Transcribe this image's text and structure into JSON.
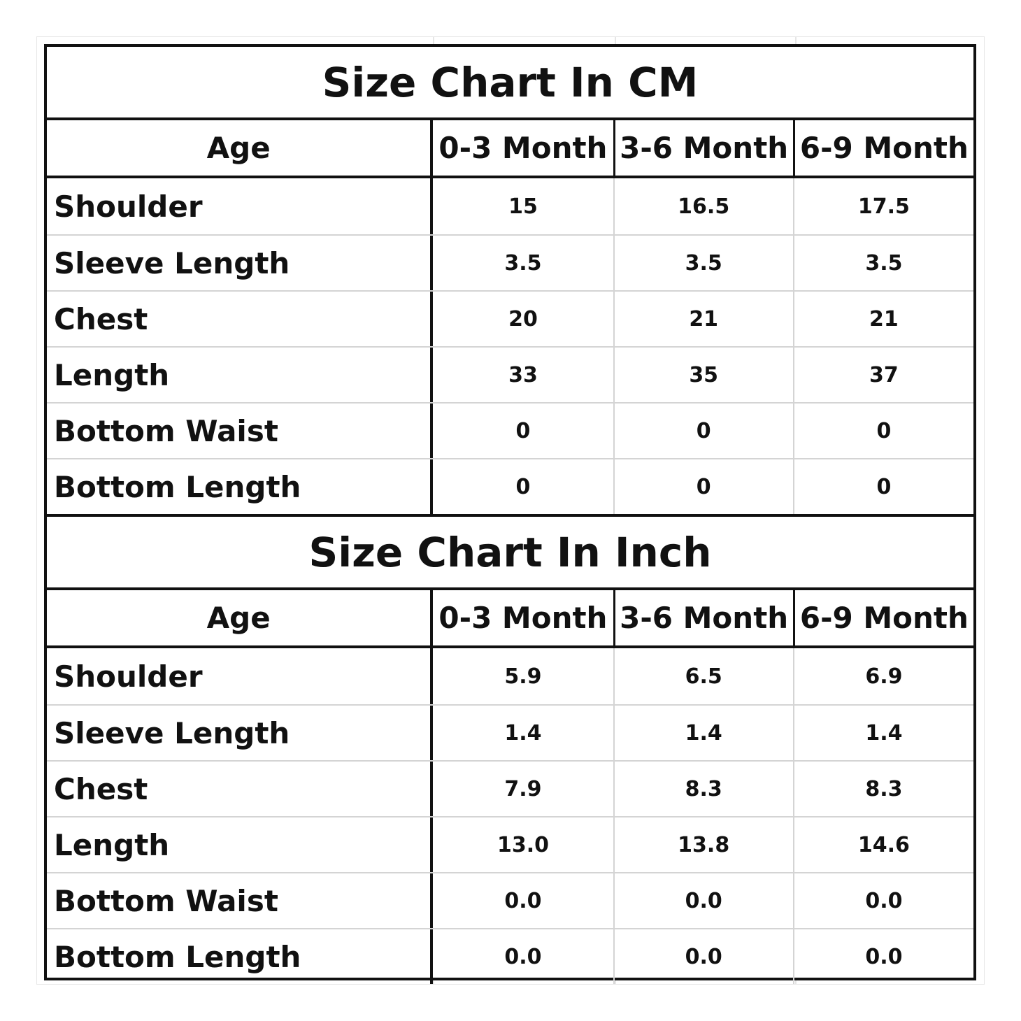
{
  "cm_chart": {
    "title": "Size Chart In CM",
    "header": {
      "label": "Age",
      "columns": [
        "0-3 Month",
        "3-6 Month",
        "6-9 Month"
      ]
    },
    "rows": [
      {
        "label": "Shoulder",
        "values": [
          "15",
          "16.5",
          "17.5"
        ]
      },
      {
        "label": "Sleeve Length",
        "values": [
          "3.5",
          "3.5",
          "3.5"
        ]
      },
      {
        "label": "Chest",
        "values": [
          "20",
          "21",
          "21"
        ]
      },
      {
        "label": "Length",
        "values": [
          "33",
          "35",
          "37"
        ]
      },
      {
        "label": "Bottom Waist",
        "values": [
          "0",
          "0",
          "0"
        ]
      },
      {
        "label": "Bottom Length",
        "values": [
          "0",
          "0",
          "0"
        ]
      }
    ]
  },
  "inch_chart": {
    "title": "Size Chart In Inch",
    "header": {
      "label": "Age",
      "columns": [
        "0-3 Month",
        "3-6 Month",
        "6-9 Month"
      ]
    },
    "rows": [
      {
        "label": "Shoulder",
        "values": [
          "5.9",
          "6.5",
          "6.9"
        ]
      },
      {
        "label": "Sleeve Length",
        "values": [
          "1.4",
          "1.4",
          "1.4"
        ]
      },
      {
        "label": "Chest",
        "values": [
          "7.9",
          "8.3",
          "8.3"
        ]
      },
      {
        "label": "Length",
        "values": [
          "13.0",
          "13.8",
          "14.6"
        ]
      },
      {
        "label": "Bottom Waist",
        "values": [
          "0.0",
          "0.0",
          "0.0"
        ]
      },
      {
        "label": "Bottom Length",
        "values": [
          "0.0",
          "0.0",
          "0.0"
        ]
      }
    ]
  }
}
